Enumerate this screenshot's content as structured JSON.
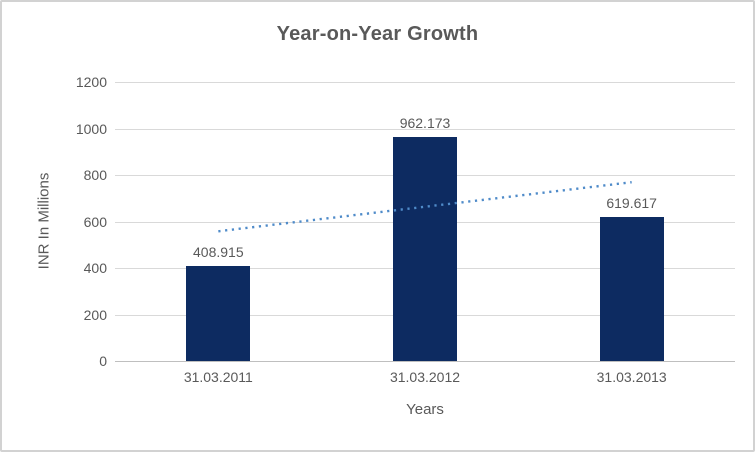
{
  "chart_data": {
    "type": "bar",
    "title": "Year-on-Year Growth",
    "categories": [
      "31.03.2011",
      "31.03.2012",
      "31.03.2013"
    ],
    "values": [
      408.915,
      962.173,
      619.617
    ],
    "data_labels": [
      "408.915",
      "962.173",
      "619.617"
    ],
    "xlabel": "Years",
    "ylabel": "INR In Millions",
    "ylim": [
      0,
      1200
    ],
    "y_ticks": [
      0,
      200,
      400,
      600,
      800,
      1000,
      1200
    ],
    "grid": true,
    "legend": false,
    "trendline": {
      "type": "linear",
      "style": "dotted",
      "start_value": 558,
      "end_value": 769
    },
    "colors": {
      "bar": "#0d2b61",
      "trendline": "#4f8bc9",
      "text": "#595959",
      "gridline": "#d9d9d9",
      "axis_line": "#bfbfbf",
      "frame_border": "#d2d2d2"
    }
  }
}
